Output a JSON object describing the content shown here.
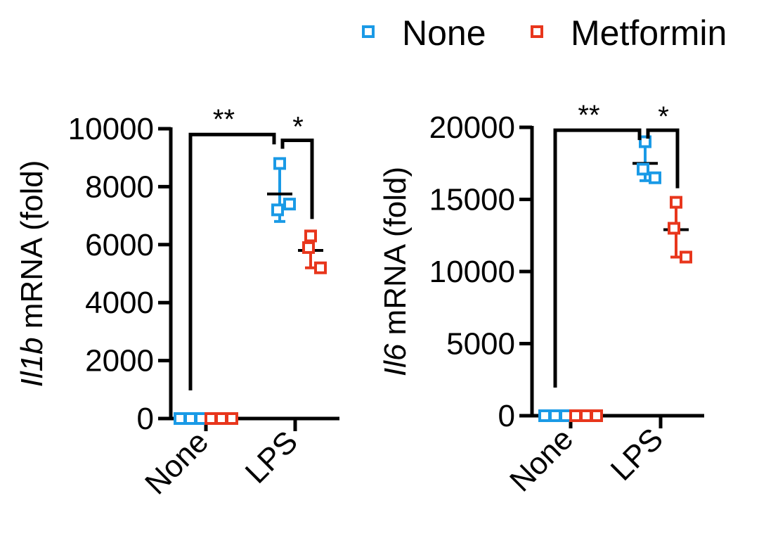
{
  "legend": {
    "position": "top-right",
    "entries": [
      {
        "label": "None",
        "color": "#1a9ae6"
      },
      {
        "label": "Metformin",
        "color": "#e8361c"
      }
    ]
  },
  "chart_data": [
    {
      "type": "scatter",
      "subtype": "dot-plot-mean-sd",
      "ylabel_gene": "Il1b",
      "ylabel_rest": " mRNA (fold)",
      "categories": [
        "None",
        "LPS"
      ],
      "ylim": [
        0,
        10000
      ],
      "yticks": [
        "0",
        "2000",
        "4000",
        "6000",
        "8000",
        "10000"
      ],
      "series": [
        {
          "name": "None",
          "color": "#1a9ae6",
          "points": [
            [
              1,
              0
            ],
            [
              1,
              0
            ],
            [
              1,
              0
            ],
            [
              2,
              8800
            ],
            [
              2,
              7200
            ],
            [
              2,
              7400
            ]
          ],
          "means": [
            0,
            7750
          ],
          "sd": [
            0,
            950
          ]
        },
        {
          "name": "Metformin",
          "color": "#e8361c",
          "points": [
            [
              1,
              0
            ],
            [
              1,
              0
            ],
            [
              1,
              0
            ],
            [
              2,
              6300
            ],
            [
              2,
              5900
            ],
            [
              2,
              5200
            ]
          ],
          "means": [
            0,
            5800
          ],
          "sd": [
            0,
            600
          ]
        }
      ],
      "annotations": [
        {
          "text": "**",
          "from": "None",
          "to": "LPS-None",
          "y": 9800
        },
        {
          "text": "*",
          "from": "LPS-None",
          "to": "LPS-Metformin",
          "y": 9600
        }
      ]
    },
    {
      "type": "scatter",
      "subtype": "dot-plot-mean-sd",
      "ylabel_gene": "Il6",
      "ylabel_rest": " mRNA (fold)",
      "categories": [
        "None",
        "LPS"
      ],
      "ylim": [
        0,
        20000
      ],
      "yticks": [
        "0",
        "5000",
        "10000",
        "15000",
        "20000"
      ],
      "series": [
        {
          "name": "None",
          "color": "#1a9ae6",
          "points": [
            [
              1,
              0
            ],
            [
              1,
              0
            ],
            [
              1,
              0
            ],
            [
              2,
              19000
            ],
            [
              2,
              17100
            ],
            [
              2,
              16500
            ]
          ],
          "means": [
            0,
            17500
          ],
          "sd": [
            0,
            1200
          ]
        },
        {
          "name": "Metformin",
          "color": "#e8361c",
          "points": [
            [
              1,
              0
            ],
            [
              1,
              0
            ],
            [
              1,
              0
            ],
            [
              2,
              14800
            ],
            [
              2,
              13000
            ],
            [
              2,
              11000
            ]
          ],
          "means": [
            0,
            12900
          ],
          "sd": [
            0,
            1900
          ]
        }
      ],
      "annotations": [
        {
          "text": "**",
          "from": "None",
          "to": "LPS-None",
          "y": 19800
        },
        {
          "text": "*",
          "from": "LPS-None",
          "to": "LPS-Metformin",
          "y": 19800
        }
      ]
    }
  ]
}
